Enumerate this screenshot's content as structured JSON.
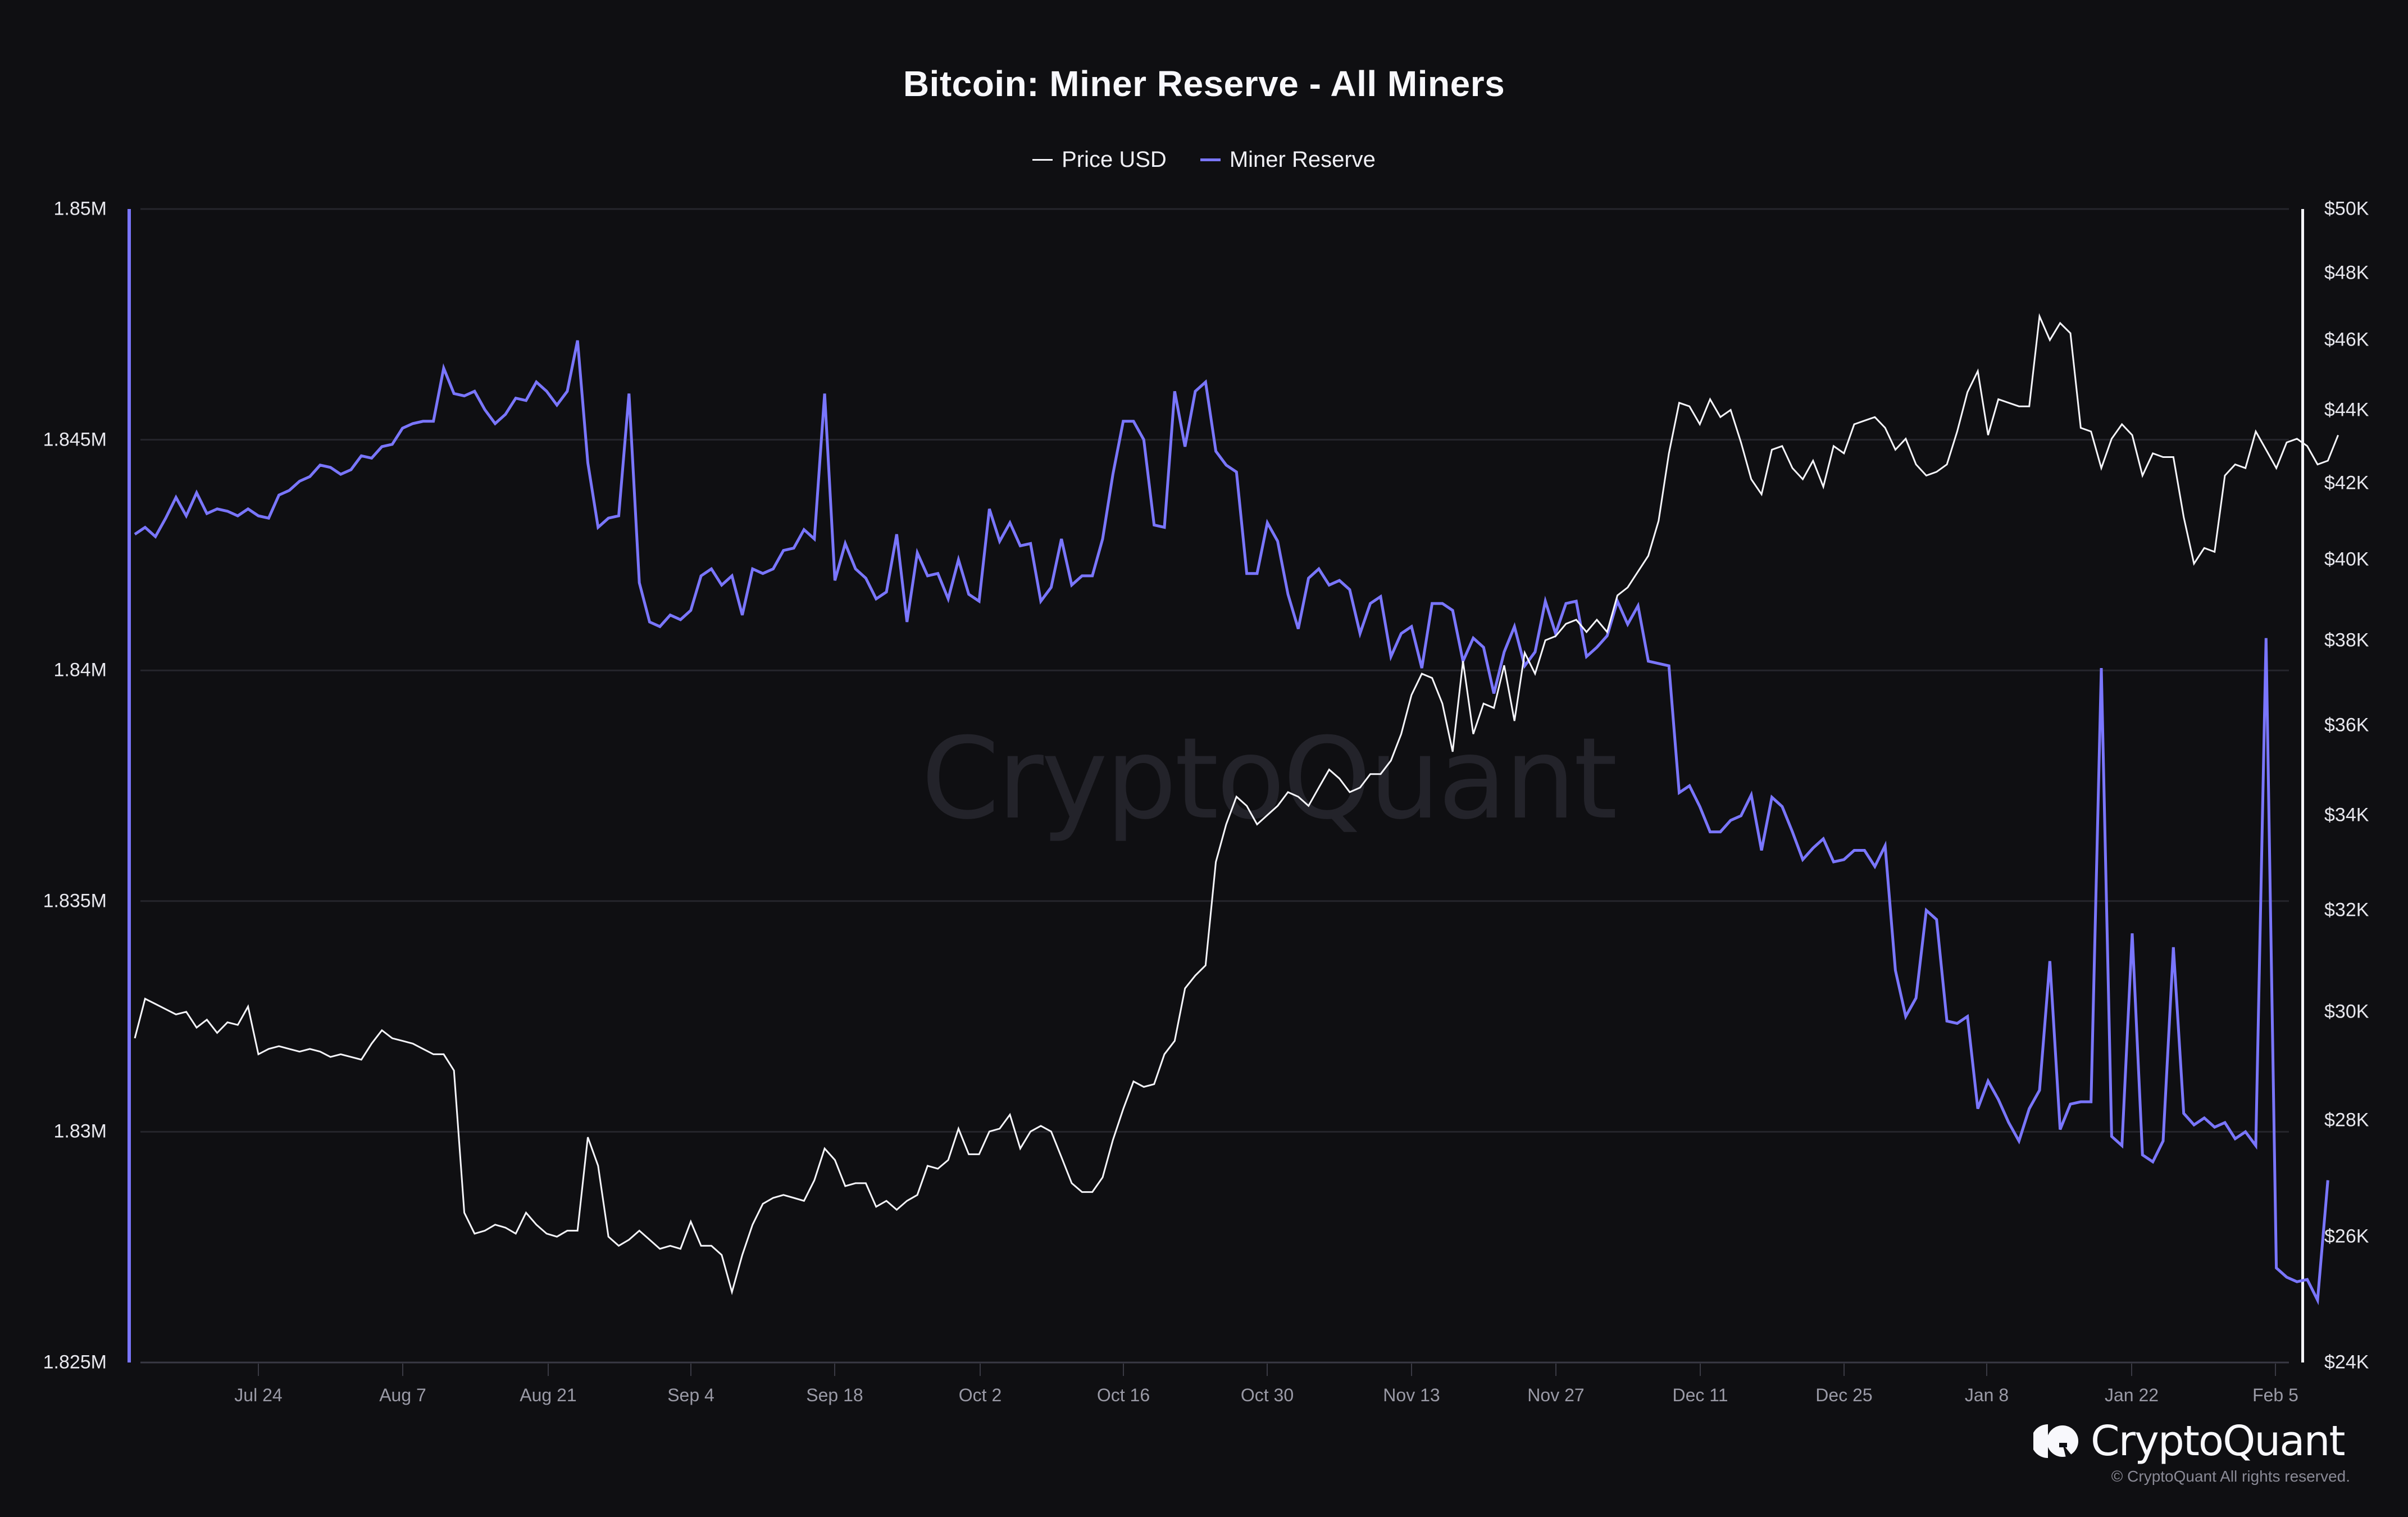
{
  "title": "Bitcoin: Miner Reserve - All Miners",
  "legend": [
    {
      "label": "Price USD",
      "color": "#f5f5fa"
    },
    {
      "label": "Miner Reserve",
      "color": "#7a76ff"
    }
  ],
  "watermark": "CryptoQuant",
  "brand": {
    "name": "CryptoQuant",
    "copyright": "© CryptoQuant All rights reserved."
  },
  "colors": {
    "background": "#0f0f12",
    "grid": "#25252c",
    "price": "#f5f5fa",
    "reserve": "#7a76ff",
    "axis_text": "#e8e8ee",
    "xtick_text": "#9a9aa6"
  },
  "chart_data": {
    "type": "line",
    "title": "Bitcoin: Miner Reserve - All Miners",
    "xlabel": "",
    "x_ticks": [
      "Jul 24",
      "Aug 7",
      "Aug 21",
      "Sep 4",
      "Sep 18",
      "Oct 2",
      "Oct 16",
      "Oct 30",
      "Nov 13",
      "Nov 27",
      "Dec 11",
      "Dec 25",
      "Jan 8",
      "Jan 22",
      "Feb 5"
    ],
    "x_range": [
      "Jul 19",
      "Feb 5"
    ],
    "y_left": {
      "label": "Miner Reserve",
      "ticks": [
        "1.825M",
        "1.83M",
        "1.835M",
        "1.84M",
        "1.845M",
        "1.85M"
      ],
      "range": [
        1825000,
        1850000
      ],
      "scale": "linear"
    },
    "y_right": {
      "label": "Price USD",
      "ticks": [
        "$24K",
        "$26K",
        "$28K",
        "$30K",
        "$32K",
        "$34K",
        "$36K",
        "$38K",
        "$40K",
        "$42K",
        "$44K",
        "$46K",
        "$48K",
        "$50K"
      ],
      "range": [
        24000,
        50000
      ],
      "scale": "log"
    },
    "grid": true,
    "legend_position": "top",
    "start_date": "Jul 19",
    "interval_days": 1,
    "series": [
      {
        "name": "Miner Reserve",
        "axis": "left",
        "color": "#7a76ff",
        "values": [
          1842950,
          1843100,
          1842900,
          1843300,
          1843750,
          1843350,
          1843850,
          1843400,
          1843500,
          1843450,
          1843350,
          1843500,
          1843350,
          1843300,
          1843800,
          1843900,
          1844100,
          1844200,
          1844450,
          1844400,
          1844250,
          1844350,
          1844650,
          1844600,
          1844850,
          1844900,
          1845250,
          1845350,
          1845400,
          1845400,
          1846550,
          1846000,
          1845950,
          1846050,
          1845650,
          1845350,
          1845550,
          1845900,
          1845850,
          1846250,
          1846050,
          1845750,
          1846050,
          1847150,
          1844500,
          1843100,
          1843300,
          1843350,
          1846000,
          1841900,
          1841050,
          1840950,
          1841200,
          1841100,
          1841300,
          1842050,
          1842200,
          1841850,
          1842050,
          1841200,
          1842200,
          1842100,
          1842200,
          1842600,
          1842650,
          1843050,
          1842850,
          1846000,
          1841950,
          1842750,
          1842200,
          1842000,
          1841550,
          1841700,
          1842950,
          1841050,
          1842550,
          1842050,
          1842100,
          1841550,
          1842400,
          1841650,
          1841500,
          1843500,
          1842800,
          1843200,
          1842700,
          1842750,
          1841500,
          1841800,
          1842850,
          1841850,
          1842050,
          1842050,
          1842850,
          1844250,
          1845400,
          1845400,
          1845000,
          1843150,
          1843100,
          1846050,
          1844850,
          1846050,
          1846250,
          1844750,
          1844450,
          1844300,
          1842100,
          1842100,
          1843200,
          1842800,
          1841650,
          1840900,
          1842000,
          1842200,
          1841850,
          1841950,
          1841750,
          1840800,
          1841450,
          1841600,
          1840300,
          1840800,
          1840950,
          1840050,
          1841450,
          1841450,
          1841300,
          1840200,
          1840700,
          1840500,
          1839500,
          1840400,
          1840950,
          1840100,
          1840400,
          1841500,
          1840800,
          1841450,
          1841500,
          1840300,
          1840500,
          1840750,
          1841500,
          1841000,
          1841400,
          1840200,
          1840150,
          1840100,
          1837350,
          1837500,
          1837050,
          1836500,
          1836500,
          1836750,
          1836850,
          1837300,
          1836100,
          1837250,
          1837050,
          1836500,
          1835900,
          1836150,
          1836350,
          1835850,
          1835900,
          1836100,
          1836100,
          1835750,
          1836200,
          1833500,
          1832500,
          1832900,
          1834800,
          1834600,
          1832400,
          1832350,
          1832500,
          1830500,
          1831100,
          1830700,
          1830200,
          1829800,
          1830500,
          1830900,
          1833700,
          1830050,
          1830600,
          1830650,
          1830650,
          1840050,
          1829900,
          1829700,
          1834300,
          1829500,
          1829350,
          1829800,
          1834000,
          1830400,
          1830150,
          1830300,
          1830100,
          1830200,
          1829850,
          1830000,
          1829700,
          1840700,
          1827050,
          1826850,
          1826750,
          1826800,
          1826350,
          1828950
        ]
      },
      {
        "name": "Price USD",
        "axis": "right",
        "color": "#f5f5fa",
        "values": [
          29500,
          30250,
          30150,
          30050,
          29950,
          30000,
          29700,
          29850,
          29600,
          29800,
          29750,
          30100,
          29200,
          29300,
          29350,
          29300,
          29250,
          29300,
          29250,
          29150,
          29200,
          29150,
          29100,
          29400,
          29650,
          29500,
          29450,
          29400,
          29300,
          29200,
          29200,
          28900,
          26400,
          26050,
          26100,
          26200,
          26150,
          26050,
          26400,
          26200,
          26050,
          26000,
          26100,
          26100,
          27700,
          27200,
          26000,
          25850,
          25950,
          26100,
          25950,
          25800,
          25850,
          25800,
          26250,
          25850,
          25850,
          25700,
          25100,
          25700,
          26200,
          26550,
          26650,
          26700,
          26650,
          26600,
          26950,
          27500,
          27300,
          26850,
          26900,
          26900,
          26500,
          26600,
          26450,
          26600,
          26700,
          27200,
          27150,
          27300,
          27850,
          27400,
          27400,
          27800,
          27850,
          28100,
          27500,
          27800,
          27900,
          27800,
          27350,
          26900,
          26750,
          26750,
          27000,
          27650,
          28200,
          28700,
          28600,
          28650,
          29200,
          29450,
          30450,
          30700,
          30900,
          33000,
          33800,
          34400,
          34200,
          33800,
          34000,
          34200,
          34500,
          34400,
          34200,
          34600,
          35000,
          34800,
          34500,
          34600,
          34900,
          34900,
          35200,
          35800,
          36700,
          37200,
          37100,
          36500,
          35400,
          37500,
          35800,
          36500,
          36400,
          37400,
          36100,
          37700,
          37200,
          38000,
          38100,
          38400,
          38500,
          38200,
          38500,
          38200,
          39100,
          39300,
          39700,
          40100,
          41000,
          42800,
          44200,
          44100,
          43600,
          44300,
          43800,
          44000,
          43100,
          42100,
          41700,
          42900,
          43000,
          42400,
          42100,
          42600,
          41900,
          43000,
          42800,
          43600,
          43700,
          43800,
          43500,
          42900,
          43200,
          42500,
          42200,
          42300,
          42500,
          43400,
          44500,
          45100,
          43300,
          44300,
          44200,
          44100,
          44100,
          46700,
          46000,
          46500,
          46200,
          43500,
          43400,
          42400,
          43200,
          43600,
          43300,
          42200,
          42800,
          42700,
          42700,
          41100,
          39900,
          40300,
          40200,
          42200,
          42500,
          42400,
          43400,
          42900,
          42400,
          43100,
          43200,
          43000,
          42500,
          42600,
          43300
        ]
      }
    ]
  }
}
